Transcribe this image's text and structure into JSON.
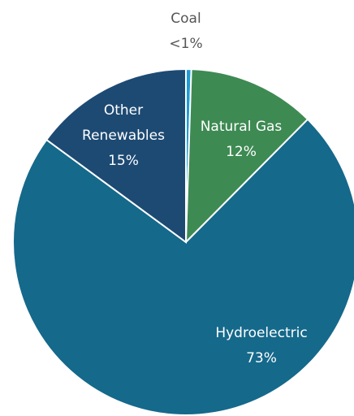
{
  "chart_data": {
    "type": "pie",
    "categories": [
      "Coal",
      "Natural Gas",
      "Hydroelectric",
      "Other Renewables"
    ],
    "values": [
      0.5,
      12,
      73,
      15
    ],
    "value_labels": [
      "<1%",
      "12%",
      "73%",
      "15%"
    ],
    "colors": [
      "#1e9bd7",
      "#3e8a53",
      "#15698b",
      "#1d4a73"
    ]
  }
}
